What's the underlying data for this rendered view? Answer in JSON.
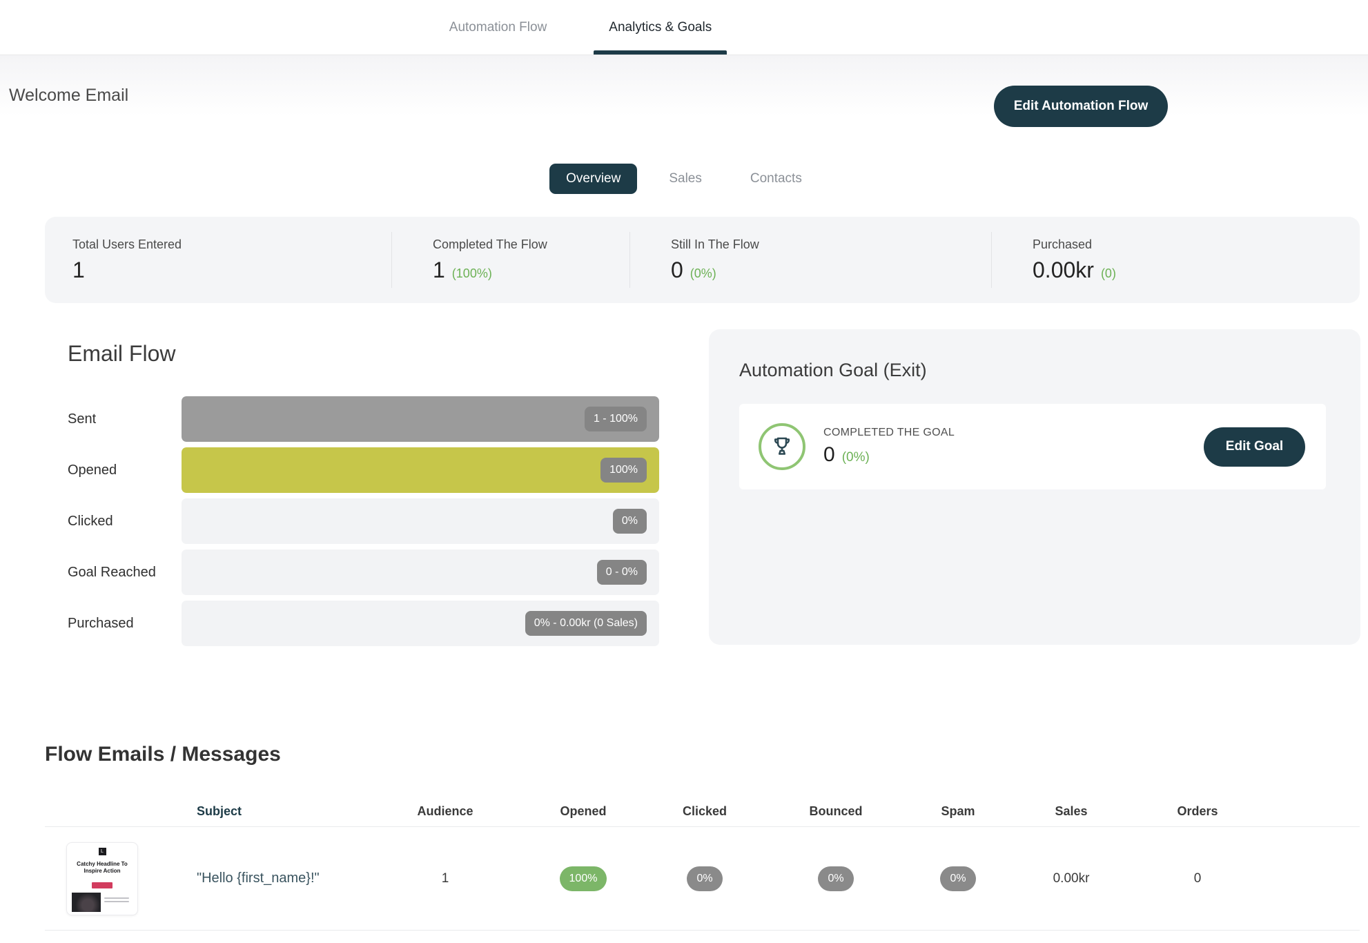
{
  "header": {
    "tabs": [
      {
        "label": "Automation Flow"
      },
      {
        "label": "Analytics & Goals"
      }
    ],
    "active_tab": "Analytics & Goals",
    "title": "Welcome Email",
    "edit_flow_button": "Edit Automation Flow"
  },
  "subtabs": {
    "items": [
      {
        "label": "Overview"
      },
      {
        "label": "Sales"
      },
      {
        "label": "Contacts"
      }
    ],
    "active": "Overview"
  },
  "stats": [
    {
      "label": "Total Users Entered",
      "value": "1",
      "sub": ""
    },
    {
      "label": "Completed The Flow",
      "value": "1",
      "sub": "(100%)"
    },
    {
      "label": "Still In The Flow",
      "value": "0",
      "sub": "(0%)"
    },
    {
      "label": "Purchased",
      "value": "0.00kr",
      "sub": "(0)"
    }
  ],
  "email_flow": {
    "title": "Email Flow",
    "rows": [
      {
        "label": "Sent",
        "badge": "1 - 100%",
        "fill_pct": 100,
        "fill_color": "#9b9b9b"
      },
      {
        "label": "Opened",
        "badge": "100%",
        "fill_pct": 100,
        "fill_color": "#c6c64a"
      },
      {
        "label": "Clicked",
        "badge": "0%",
        "fill_pct": 0,
        "fill_color": "transparent"
      },
      {
        "label": "Goal Reached",
        "badge": "0 - 0%",
        "fill_pct": 0,
        "fill_color": "transparent"
      },
      {
        "label": "Purchased",
        "badge": "0% - 0.00kr (0 Sales)",
        "fill_pct": 0,
        "fill_color": "transparent"
      }
    ]
  },
  "goal_panel": {
    "title": "Automation Goal (Exit)",
    "icon": "trophy-icon",
    "label": "COMPLETED THE GOAL",
    "value": "0",
    "sub": "(0%)",
    "button": "Edit Goal"
  },
  "flow_emails": {
    "title": "Flow Emails / Messages",
    "columns": [
      "Subject",
      "Audience",
      "Opened",
      "Clicked",
      "Bounced",
      "Spam",
      "Sales",
      "Orders"
    ],
    "rows": [
      {
        "subject": "\"Hello {first_name}!\"",
        "audience": "1",
        "opened": "100%",
        "clicked": "0%",
        "bounced": "0%",
        "spam": "0%",
        "sales": "0.00kr",
        "orders": "0",
        "thumbnail_logo": "L",
        "thumbnail_headline": "Catchy Headline To Inspire Action"
      }
    ]
  },
  "colors": {
    "dark_teal": "#1d3b47",
    "green_text": "#6cb155",
    "green_pill": "#7cb668",
    "gray_pill": "#8a8a8a",
    "badge_gray": "#858585",
    "bar_sent": "#9b9b9b",
    "bar_opened": "#c6c64a",
    "track": "#f2f3f5",
    "panel_bg": "#f4f5f7",
    "thumb_accent": "#d23c5e"
  }
}
